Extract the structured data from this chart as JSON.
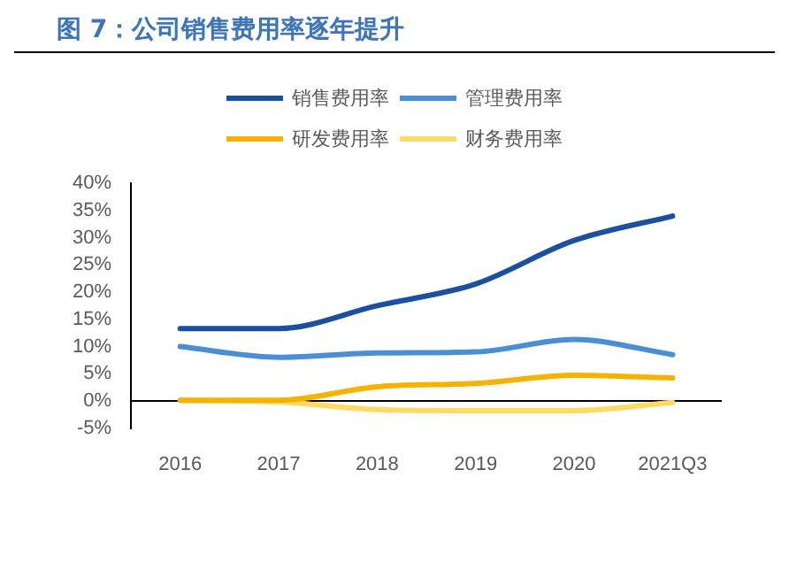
{
  "chart_data": {
    "type": "line",
    "title": "图 7：公司销售费用率逐年提升",
    "categories": [
      "2016",
      "2017",
      "2018",
      "2019",
      "2020",
      "2021Q3"
    ],
    "series": [
      {
        "name": "销售费用率",
        "color": "#1b4f9f",
        "values": [
          13.3,
          13.3,
          17.5,
          21.5,
          29.5,
          34
        ]
      },
      {
        "name": "管理费用率",
        "color": "#4a8fd6",
        "values": [
          10,
          8,
          8.8,
          9,
          11.3,
          8.5
        ]
      },
      {
        "name": "研发费用率",
        "color": "#f5b300",
        "values": [
          0.1,
          0.1,
          2.6,
          3.2,
          4.7,
          4.2
        ]
      },
      {
        "name": "财务费用率",
        "color": "#ffd966",
        "values": [
          0.1,
          -0.2,
          -1.6,
          -1.8,
          -1.8,
          -0.3
        ]
      }
    ],
    "ylim": [
      -5,
      40
    ],
    "yticks": [
      {
        "value": -5,
        "label": "-5%"
      },
      {
        "value": 0,
        "label": "0%"
      },
      {
        "value": 5,
        "label": "5%"
      },
      {
        "value": 10,
        "label": "10%"
      },
      {
        "value": 15,
        "label": "15%"
      },
      {
        "value": 20,
        "label": "20%"
      },
      {
        "value": 25,
        "label": "25%"
      },
      {
        "value": 30,
        "label": "30%"
      },
      {
        "value": 35,
        "label": "35%"
      },
      {
        "value": 40,
        "label": "40%"
      }
    ],
    "ref_lines": [
      {
        "axis": "y",
        "value": 0,
        "color": "#000000"
      }
    ],
    "grid": false,
    "legend": "top",
    "marker": "none",
    "line_style": "solid"
  }
}
